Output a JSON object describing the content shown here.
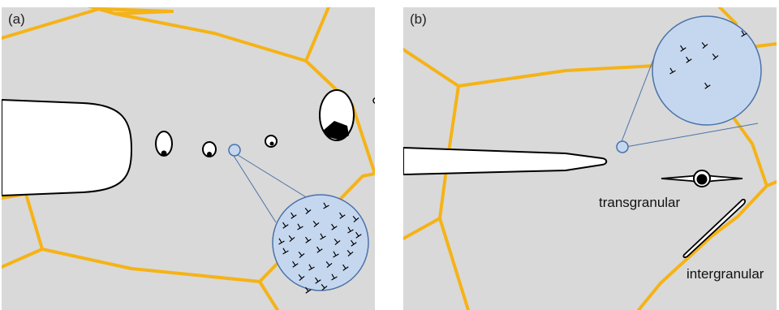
{
  "panels": {
    "a": {
      "label": "(a)"
    },
    "b": {
      "label": "(b)",
      "transgranular_label": "transgranular",
      "intergranular_label": "intergranular"
    }
  },
  "colors": {
    "background": "#d9d9d9",
    "grain_boundary": "#f5b316",
    "magnifier_fill": "#c5d7ef",
    "magnifier_stroke": "#4a72a8",
    "crack": "#ffffff",
    "outline": "#000000"
  },
  "icons": [
    "dislocation-symbol",
    "void",
    "crack",
    "magnifier-circle"
  ]
}
